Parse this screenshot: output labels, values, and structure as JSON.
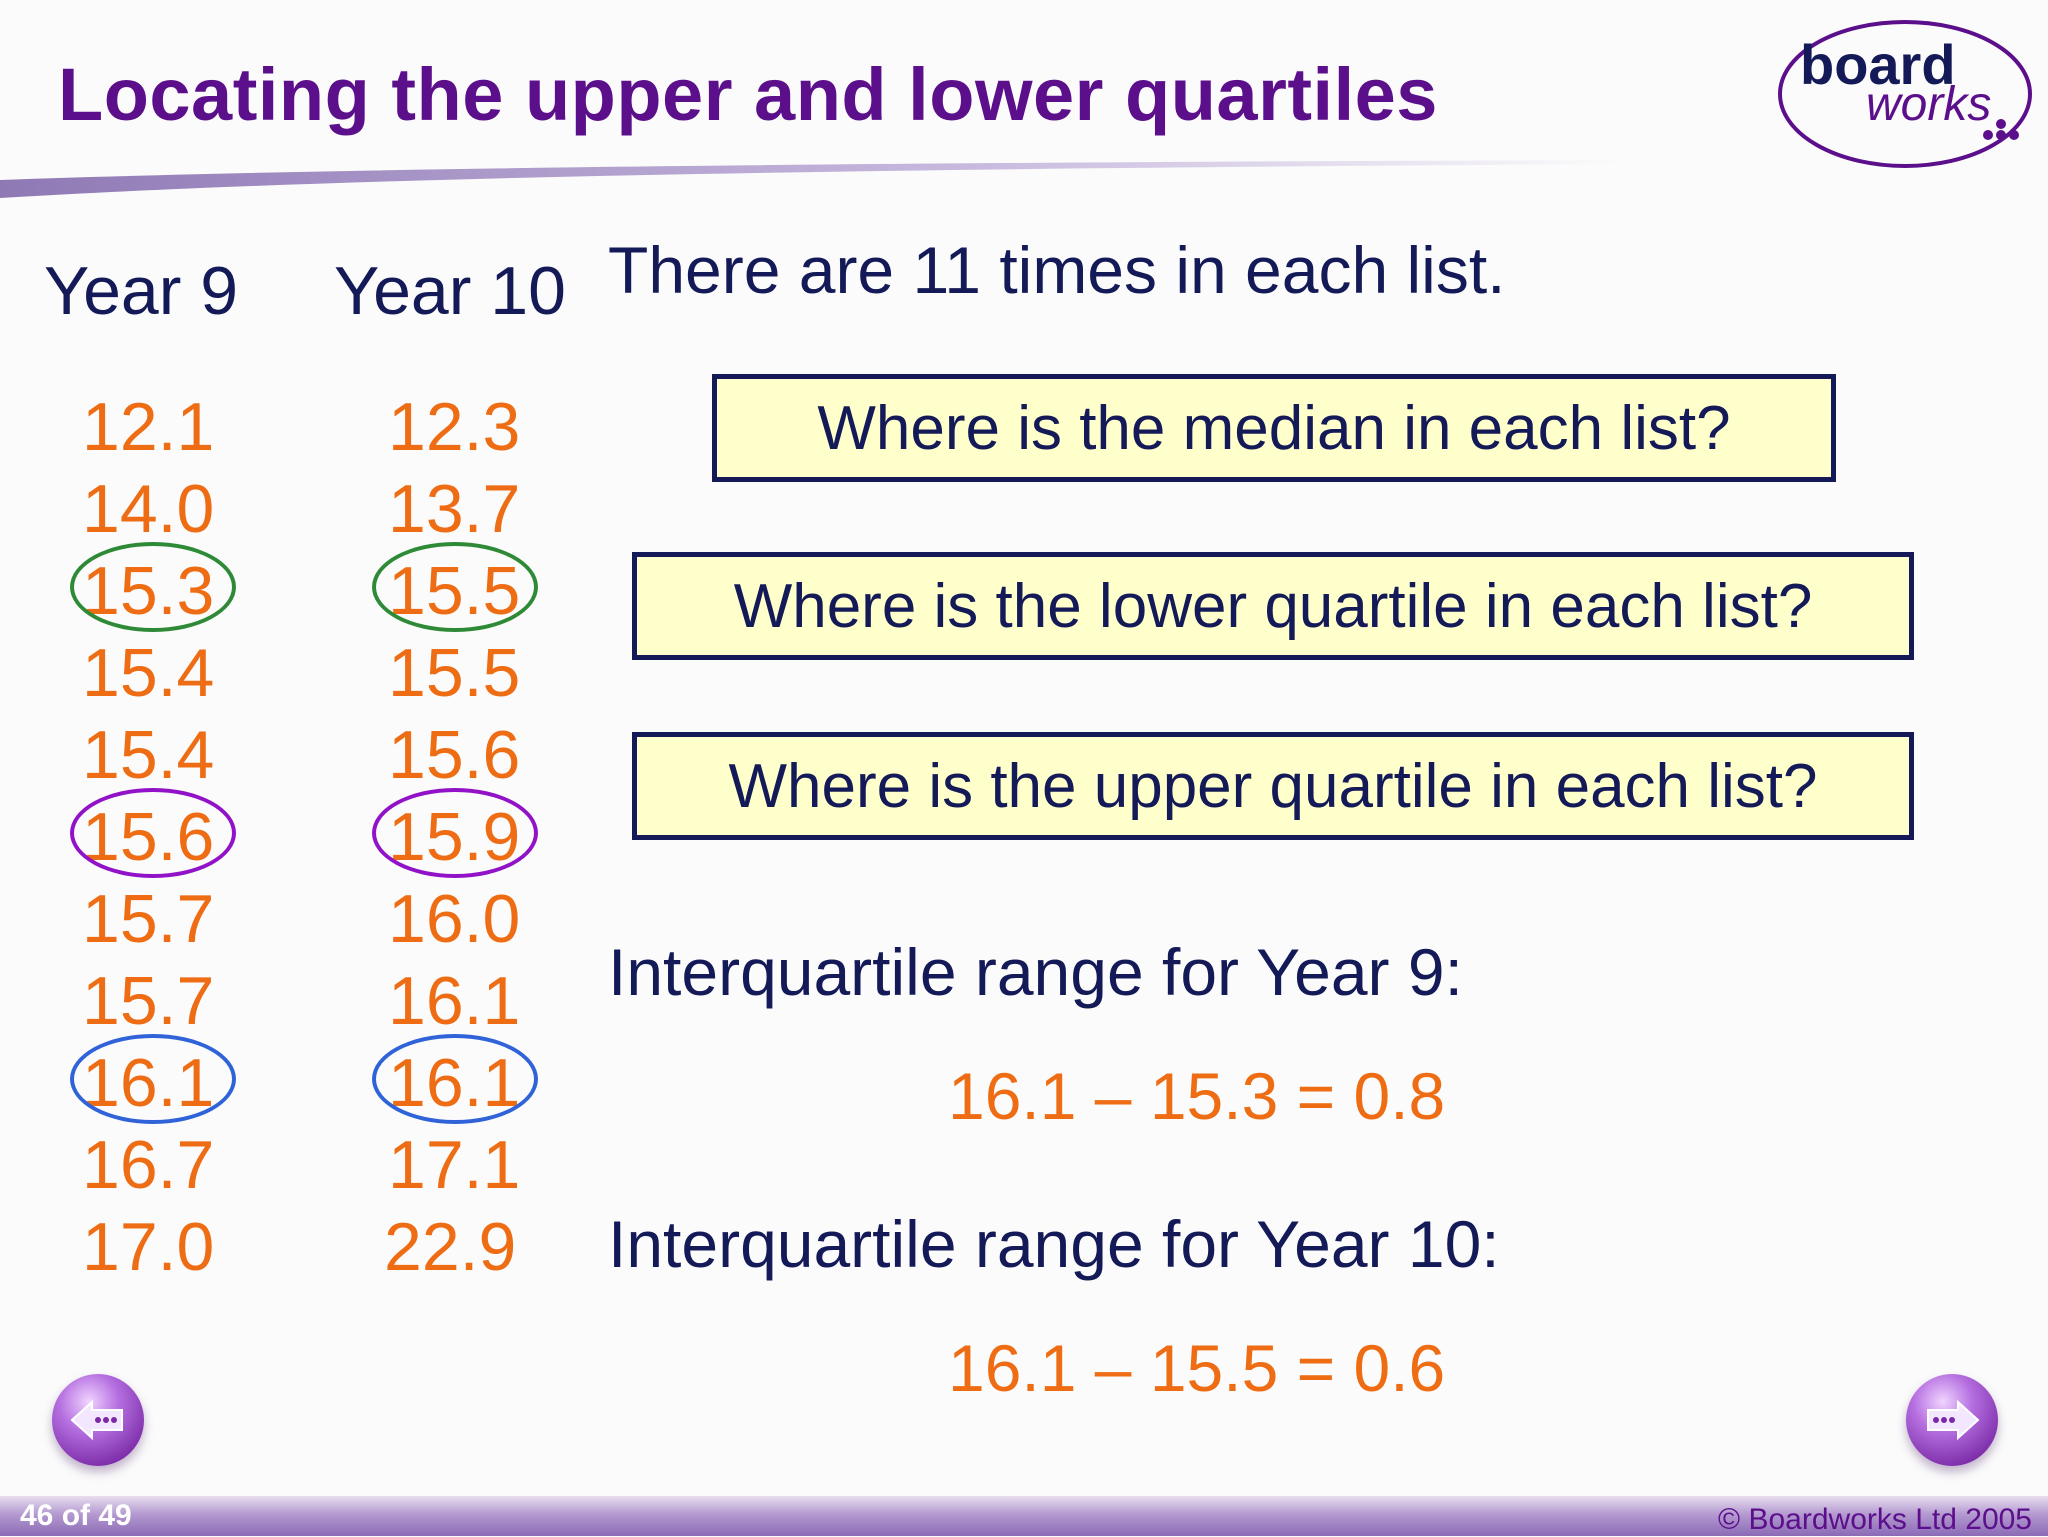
{
  "slide": {
    "title": "Locating the upper and lower quartiles",
    "logo": {
      "text_top": "board",
      "text_bottom": "works",
      "brand_color": "#5c0f8b"
    }
  },
  "columns": {
    "year9": {
      "label": "Year 9",
      "values": [
        "12.1",
        "14.0",
        "15.3",
        "15.4",
        "15.4",
        "15.6",
        "15.7",
        "15.7",
        "16.1",
        "16.7",
        "17.0"
      ]
    },
    "year10": {
      "label": "Year 10",
      "values": [
        "12.3",
        "13.7",
        "15.5",
        "15.5",
        "15.6",
        "15.9",
        "16.0",
        "16.1",
        "16.1",
        "17.1",
        "22.9"
      ]
    }
  },
  "highlights": {
    "lower_quartile_color": "#2e8a36",
    "median_color": "#9112c7",
    "upper_quartile_color": "#2f63d7"
  },
  "content": {
    "statement": "There are 11 times in each list.",
    "questions": [
      "Where is the median in each list?",
      "Where is the lower quartile in each list?",
      "Where is the upper quartile in each list?"
    ],
    "iqr_year9_label": "Interquartile range for Year 9:",
    "iqr_year9_calc": "16.1 – 15.3 = 0.8",
    "iqr_year10_label": "Interquartile range for Year 10:",
    "iqr_year10_calc": "16.1 – 15.5 = 0.6"
  },
  "navigation": {
    "prev_icon": "left-arrow-icon",
    "next_icon": "right-arrow-icon"
  },
  "footer": {
    "page_indicator": "46 of 49",
    "copyright": "© Boardworks Ltd 2005"
  },
  "colors": {
    "title": "#5c0f8b",
    "text": "#141a57",
    "numbers": "#ee6d14",
    "question_box_fill": "#ffffcc"
  }
}
